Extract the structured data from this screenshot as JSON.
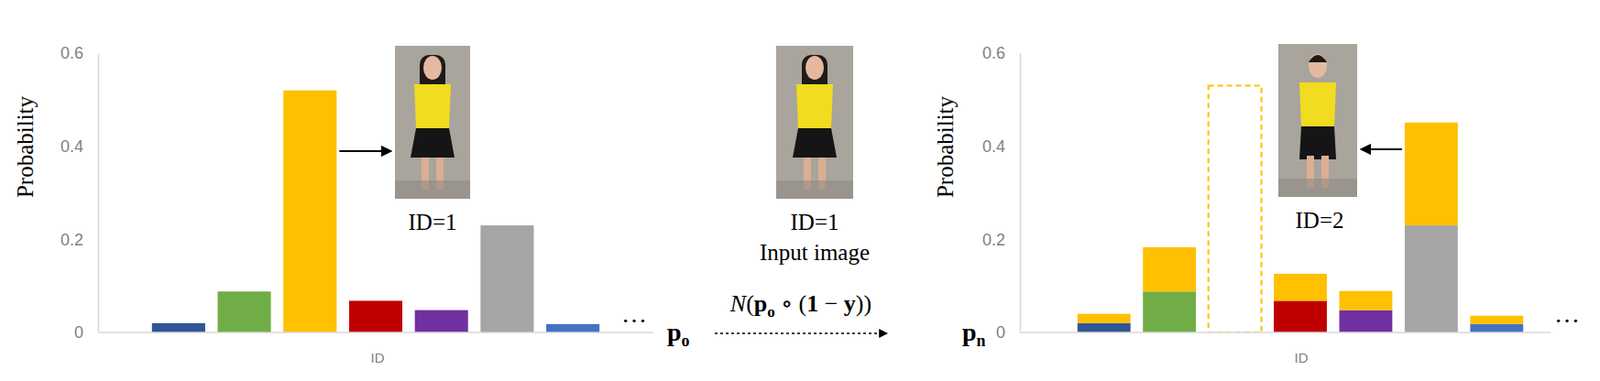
{
  "chart_data": [
    {
      "type": "bar",
      "x_label": "ID",
      "y_label": "Probability",
      "categories": [
        null,
        null,
        null,
        null,
        null,
        null,
        null
      ],
      "values": [
        0.02,
        0.088,
        0.52,
        0.068,
        0.048,
        0.23,
        0.018
      ],
      "colors": [
        "#2f5597",
        "#70ad47",
        "#ffc000",
        "#c00000",
        "#7030a0",
        "#a5a5a5",
        "#4472c4"
      ],
      "ylim": [
        0,
        0.6
      ],
      "yticks": [
        0,
        0.2,
        0.4,
        0.6
      ],
      "tick_labels": "y",
      "image_label": "ID=1",
      "ellipsis": "…",
      "vector_label": [
        "p",
        "o"
      ]
    },
    {
      "type": "bar",
      "x_label": "ID",
      "y_label": "Probability",
      "stacked": true,
      "categories": [
        null,
        null,
        null,
        null,
        null,
        null,
        null
      ],
      "series": [
        {
          "colors": [
            "#2f5597",
            "#70ad47",
            "#ffc000",
            "#c00000",
            "#7030a0",
            "#a5a5a5",
            "#4472c4"
          ],
          "values": [
            0.02,
            0.088,
            null,
            0.068,
            0.048,
            0.23,
            0.018
          ]
        },
        {
          "color": "#ffc000",
          "values": [
            0.02,
            0.095,
            null,
            0.058,
            0.041,
            0.221,
            0.018
          ]
        },
        {
          "color": "#ffc000",
          "line_style": "dashed",
          "values": [
            null,
            null,
            0.53,
            null,
            null,
            null,
            null
          ]
        }
      ],
      "ylim": [
        0,
        0.6
      ],
      "yticks": [
        0,
        0.2,
        0.4,
        0.6
      ],
      "tick_labels": "y",
      "image_label": "ID=2",
      "ellipsis": "…",
      "vector_label": [
        "p",
        "n"
      ]
    }
  ],
  "input": {
    "label": "ID=1",
    "caption": "Input image"
  },
  "formula": [
    "N",
    "(",
    "p",
    "o",
    " ∘ (",
    "1",
    " − ",
    "y",
    "))"
  ]
}
